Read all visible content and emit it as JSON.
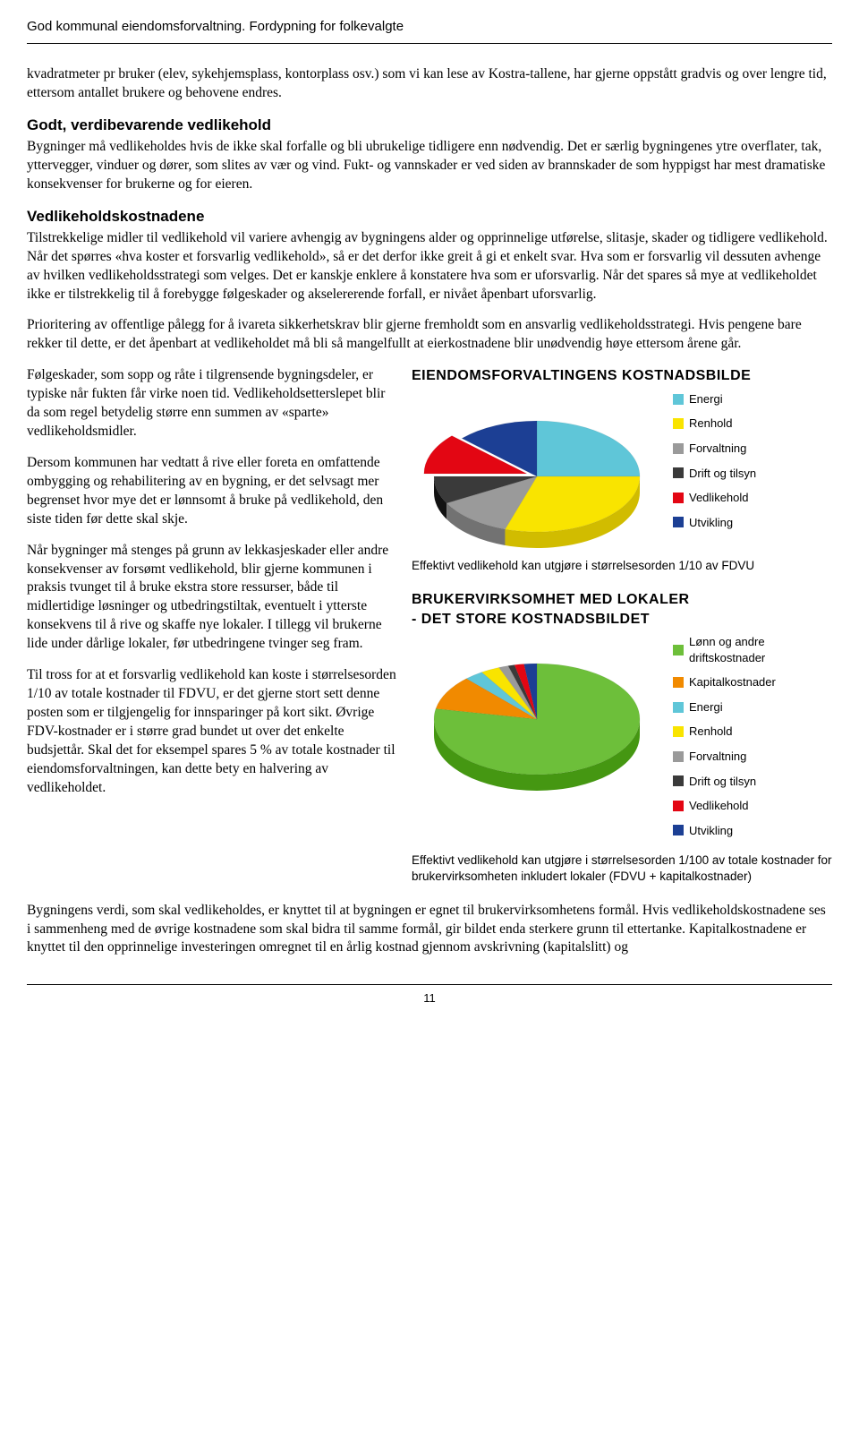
{
  "header": {
    "title": "God kommunal eiendomsforvaltning. Fordypning for folkevalgte"
  },
  "p1": "kvadratmeter pr bruker (elev, sykehjemsplass, kontorplass osv.) som vi kan lese av Kostra-tallene, har gjerne oppstått gradvis og over lengre tid, ettersom antallet brukere og behovene endres.",
  "h1": "Godt, verdibevarende vedlikehold",
  "p2": "Bygninger må vedlikeholdes hvis de ikke skal forfalle og bli ubrukelige tidligere enn nødvendig. Det er særlig bygningenes ytre overflater, tak, yttervegger, vinduer og dører, som slites av vær og vind. Fukt- og vannskader er ved siden av brannskader de som hyppigst har mest dramatiske konsekvenser for brukerne og for eieren.",
  "h2": "Vedlikeholdskostnadene",
  "p3": "Tilstrekkelige midler til vedlikehold vil variere avhengig av bygningens alder og opprinnelige utførelse, slitasje, skader og tidligere vedlikehold. Når det spørres «hva koster et forsvarlig vedlikehold», så er det derfor ikke greit å gi et enkelt svar. Hva som er forsvarlig vil dessuten avhenge av hvilken vedlikeholdsstrategi som velges. Det er kanskje enklere å konstatere hva som er uforsvarlig. Når det spares så mye at vedlikeholdet ikke er tilstrekkelig til å forebygge følgeskader og akselererende forfall, er nivået åpenbart uforsvarlig.",
  "p4": "Prioritering av offentlige pålegg for å ivareta sikkerhetskrav blir gjerne fremholdt som en ansvarlig vedlikeholdsstrategi. Hvis pengene bare rekker til dette, er det åpenbart at vedlikeholdet må bli så mangelfullt at eierkostnadene blir unødvendig høye ettersom årene går.",
  "p5": "Følgeskader, som sopp og råte i tilgrensende bygningsdeler, er typiske når fukten får virke noen tid. Vedlikeholdsetterslepet blir da som regel betydelig større enn summen av «sparte» vedlikeholdsmidler.",
  "p6": "Dersom kommunen har vedtatt å rive eller foreta en omfattende ombygging og rehabilitering av en bygning, er det selvsagt mer begrenset hvor mye det er lønnsomt å bruke på vedlikehold, den siste tiden før dette skal skje.",
  "p7": "Når bygninger må stenges på grunn av lekkasjeskader eller andre konsekvenser av forsømt vedlikehold, blir gjerne kommunen i praksis tvunget til å bruke ekstra store ressurser, både til midlertidige løsninger og utbedringstiltak, eventuelt i ytterste konsekvens til å rive og skaffe nye lokaler. I tillegg vil brukerne lide under dårlige lokaler, før utbedringene tvinger seg fram.",
  "p8": "Til tross for at et forsvarlig vedlikehold kan koste i størrelsesorden 1/10 av totale kostnader til FDVU, er det gjerne stort sett denne posten som er tilgjengelig for innsparinger på kort sikt. Øvrige FDV-kostnader er i større grad bundet ut over det enkelte budsjettår. Skal det for eksempel spares 5 % av totale kostnader til eiendomsforvaltningen, kan dette bety en halvering av vedlikeholdet.",
  "p9": "Bygningens verdi, som skal vedlikeholdes, er knyttet til at bygningen er egnet til brukervirksomhetens formål. Hvis vedlikeholdskostnadene ses i sammenheng med de øvrige kostnadene som skal bidra til samme formål, gir bildet enda sterkere grunn til ettertanke. Kapitalkostnadene er knyttet til den opprinnelige investeringen omregnet til en årlig kostnad gjennom avskrivning (kapitalslitt) og",
  "chart1": {
    "title": "EIENDOMSFORVALTINGENS KOSTNADSBILDE",
    "caption": "Effektivt vedlikehold kan utgjøre i størrelsesorden 1/10 av FDVU",
    "type": "pie",
    "legend": [
      {
        "label": "Energi",
        "color": "#5fc6d8"
      },
      {
        "label": "Renhold",
        "color": "#f9e400"
      },
      {
        "label": "Forvaltning",
        "color": "#9a9a9a"
      },
      {
        "label": "Drift og tilsyn",
        "color": "#3a3a3a"
      },
      {
        "label": "Vedlikehold",
        "color": "#e30613"
      },
      {
        "label": "Utvikling",
        "color": "#1c3f94"
      }
    ],
    "slices": [
      {
        "value": 25,
        "color": "#5fc6d8"
      },
      {
        "value": 30,
        "color": "#f9e400"
      },
      {
        "value": 12,
        "color": "#9a9a9a"
      },
      {
        "value": 8,
        "color": "#3a3a3a"
      },
      {
        "value": 12,
        "color": "#e30613"
      },
      {
        "value": 13,
        "color": "#1c3f94"
      }
    ]
  },
  "chart2": {
    "title_line1": "BRUKERVIRKSOMHET MED LOKALER",
    "title_line2": "- DET STORE KOSTNADSBILDET",
    "caption": "Effektivt vedlikehold kan utgjøre i størrelsesorden 1/100 av totale kostnader for brukervirksomheten inkludert lokaler (FDVU + kapitalkostnader)",
    "type": "pie",
    "legend": [
      {
        "label": "Lønn og andre driftskostnader",
        "color": "#6dbf3a"
      },
      {
        "label": "Kapitalkostnader",
        "color": "#f18a00"
      },
      {
        "label": "Energi",
        "color": "#5fc6d8"
      },
      {
        "label": "Renhold",
        "color": "#f9e400"
      },
      {
        "label": "Forvaltning",
        "color": "#9a9a9a"
      },
      {
        "label": "Drift og tilsyn",
        "color": "#3a3a3a"
      },
      {
        "label": "Vedlikehold",
        "color": "#e30613"
      },
      {
        "label": "Utvikling",
        "color": "#1c3f94"
      }
    ],
    "slices": [
      {
        "value": 78,
        "color": "#6dbf3a"
      },
      {
        "value": 10,
        "color": "#f18a00"
      },
      {
        "value": 3,
        "color": "#5fc6d8"
      },
      {
        "value": 3,
        "color": "#f9e400"
      },
      {
        "value": 1.5,
        "color": "#9a9a9a"
      },
      {
        "value": 1,
        "color": "#3a3a3a"
      },
      {
        "value": 1.5,
        "color": "#e30613"
      },
      {
        "value": 2,
        "color": "#1c3f94"
      }
    ]
  },
  "page_number": "11"
}
